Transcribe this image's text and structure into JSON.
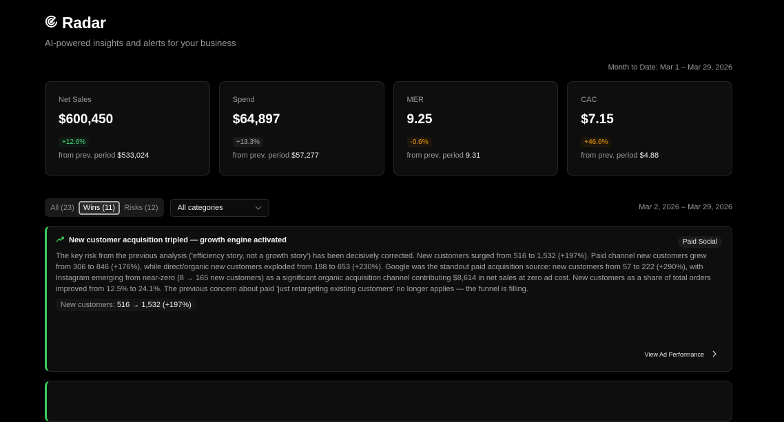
{
  "app": {
    "title": "Radar",
    "subtitle": "AI-powered insights and alerts for your business",
    "logo_icon": "radar-icon"
  },
  "period": {
    "label": "Month to Date: Mar 1 – Mar 29, 2026"
  },
  "kpis": [
    {
      "label": "Net Sales",
      "value": "$600,450",
      "change": "+12.6%",
      "status": "positive",
      "prev_label": "from prev. period",
      "prev_value": "$533,024"
    },
    {
      "label": "Spend",
      "value": "$64,897",
      "change": "+13.3%",
      "status": "neutral",
      "prev_label": "from prev. period",
      "prev_value": "$57,277"
    },
    {
      "label": "MER",
      "value": "9.25",
      "change": "-0.6%",
      "status": "warning",
      "prev_label": "from prev. period",
      "prev_value": "9.31"
    },
    {
      "label": "CAC",
      "value": "$7.15",
      "change": "+46.6%",
      "status": "warning",
      "prev_label": "from prev. period",
      "prev_value": "$4.88"
    }
  ],
  "filters": {
    "tabs": [
      "All (23)",
      "Wins (11)",
      "Risks (12)"
    ],
    "active_tab": "Wins (11)",
    "category": "All categories",
    "date_range": "Mar 2, 2026 – Mar 29, 2026"
  },
  "insights": [
    {
      "title": "New customer acquisition tripled — growth engine activated",
      "icon": "trending-up-icon",
      "tag": "Paid Social",
      "accent": "#3ccf5e",
      "body": "The key risk from the previous analysis ('efficiency story, not a growth story') has been decisively corrected. New customers surged from 516 to 1,532 (+197%). Paid channel new customers grew from 306 to 846 (+176%), while direct/organic new customers exploded from 198 to 653 (+230%). Google was the standout paid acquisition source: new customers from 57 to 222 (+290%), with Instagram emerging from near-zero (8 → 165 new customers) as a significant organic acquisition channel contributing $8,614 in net sales at zero ad cost. New customers as a share of total orders improved from 12.5% to 24.1%. The previous concern about paid 'just retargeting existing customers' no longer applies — the funnel is filling.",
      "metric_label": "New customers:",
      "metric_value": "516 → 1,532 (+197%)",
      "link": "View Ad Performance"
    }
  ]
}
